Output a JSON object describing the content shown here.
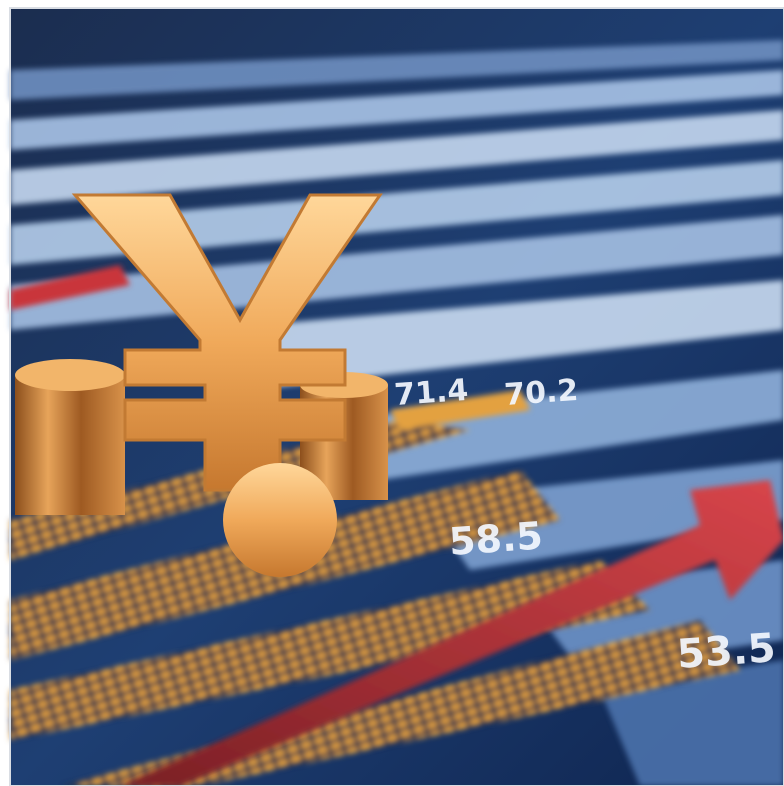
{
  "image": {
    "labels": [
      "71.4",
      "70.2",
      "58.5",
      "53.5"
    ]
  }
}
